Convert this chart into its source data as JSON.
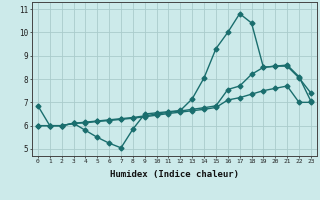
{
  "xlabel": "Humidex (Indice chaleur)",
  "bg_color": "#cceaea",
  "grid_color": "#aacccc",
  "line_color": "#1a6e6e",
  "xlim": [
    -0.5,
    23.5
  ],
  "ylim": [
    4.7,
    11.3
  ],
  "xticks": [
    0,
    1,
    2,
    3,
    4,
    5,
    6,
    7,
    8,
    9,
    10,
    11,
    12,
    13,
    14,
    15,
    16,
    17,
    18,
    19,
    20,
    21,
    22,
    23
  ],
  "yticks": [
    5,
    6,
    7,
    8,
    9,
    10,
    11
  ],
  "line1_x": [
    0,
    1,
    2,
    3,
    4,
    5,
    6,
    7,
    8,
    9,
    10,
    11,
    12,
    13,
    14,
    15,
    16,
    17,
    18,
    19,
    20,
    21,
    22,
    23
  ],
  "line1_y": [
    6.85,
    6.0,
    6.0,
    6.1,
    5.8,
    5.5,
    5.25,
    5.05,
    5.85,
    6.5,
    6.55,
    6.6,
    6.65,
    7.15,
    8.05,
    9.3,
    10.0,
    10.8,
    10.4,
    8.5,
    8.55,
    8.6,
    8.1,
    7.05
  ],
  "line2_x": [
    0,
    1,
    2,
    3,
    4,
    5,
    6,
    7,
    8,
    9,
    10,
    11,
    12,
    13,
    14,
    15,
    16,
    17,
    18,
    19,
    20,
    21,
    22,
    23
  ],
  "line2_y": [
    6.0,
    6.0,
    6.0,
    6.1,
    6.15,
    6.2,
    6.25,
    6.3,
    6.35,
    6.42,
    6.5,
    6.57,
    6.63,
    6.7,
    6.77,
    6.85,
    7.55,
    7.7,
    8.2,
    8.5,
    8.55,
    8.55,
    8.05,
    7.4
  ],
  "line3_x": [
    0,
    1,
    2,
    3,
    4,
    5,
    6,
    7,
    8,
    9,
    10,
    11,
    12,
    13,
    14,
    15,
    16,
    17,
    18,
    19,
    20,
    21,
    22,
    23
  ],
  "line3_y": [
    6.0,
    6.0,
    6.0,
    6.1,
    6.12,
    6.18,
    6.22,
    6.27,
    6.32,
    6.38,
    6.45,
    6.52,
    6.58,
    6.64,
    6.7,
    6.78,
    7.1,
    7.2,
    7.35,
    7.5,
    7.6,
    7.7,
    7.0,
    7.0
  ],
  "marker": "D",
  "markersize": 2.5,
  "linewidth": 1.0
}
